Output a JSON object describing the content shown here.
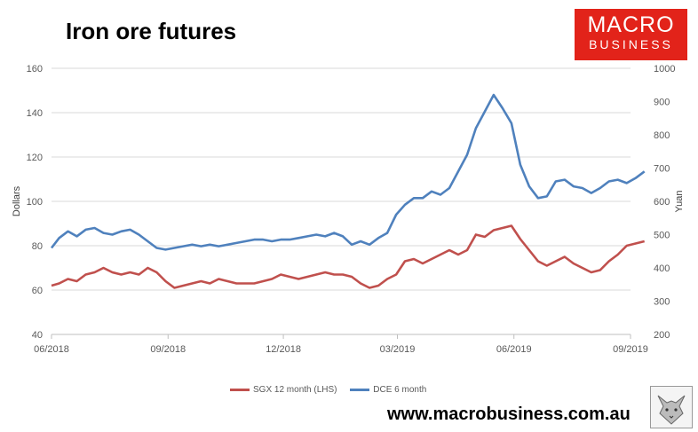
{
  "chart_data": {
    "type": "line",
    "title": "Iron ore futures",
    "ylabel_left": "Dollars",
    "ylabel_right": "Yuan",
    "y_left_lim": [
      40,
      160
    ],
    "y_left_ticks": [
      40,
      60,
      80,
      100,
      120,
      140,
      160
    ],
    "y_right_lim": [
      200,
      1000
    ],
    "y_right_ticks": [
      200,
      300,
      400,
      500,
      600,
      700,
      800,
      900,
      1000
    ],
    "x_lim": [
      "2018-06-01",
      "2019-09-01"
    ],
    "x_ticks": [
      "06/2018",
      "09/2018",
      "12/2018",
      "03/2019",
      "06/2019",
      "09/2019"
    ],
    "grid": true,
    "legend_position": "bottom",
    "series": [
      {
        "name": "SGX 12 month (LHS)",
        "axis": "left",
        "color": "#c0504d",
        "points": [
          [
            "2018-06-01",
            62
          ],
          [
            "2018-06-07",
            63
          ],
          [
            "2018-06-14",
            65
          ],
          [
            "2018-06-21",
            64
          ],
          [
            "2018-06-28",
            67
          ],
          [
            "2018-07-05",
            68
          ],
          [
            "2018-07-12",
            70
          ],
          [
            "2018-07-19",
            68
          ],
          [
            "2018-07-26",
            67
          ],
          [
            "2018-08-02",
            68
          ],
          [
            "2018-08-09",
            67
          ],
          [
            "2018-08-16",
            70
          ],
          [
            "2018-08-23",
            68
          ],
          [
            "2018-08-30",
            64
          ],
          [
            "2018-09-06",
            61
          ],
          [
            "2018-09-13",
            62
          ],
          [
            "2018-09-20",
            63
          ],
          [
            "2018-09-27",
            64
          ],
          [
            "2018-10-04",
            63
          ],
          [
            "2018-10-11",
            65
          ],
          [
            "2018-10-18",
            64
          ],
          [
            "2018-10-25",
            63
          ],
          [
            "2018-11-01",
            63
          ],
          [
            "2018-11-08",
            63
          ],
          [
            "2018-11-15",
            64
          ],
          [
            "2018-11-22",
            65
          ],
          [
            "2018-11-29",
            67
          ],
          [
            "2018-12-06",
            66
          ],
          [
            "2018-12-13",
            65
          ],
          [
            "2018-12-20",
            66
          ],
          [
            "2018-12-27",
            67
          ],
          [
            "2019-01-03",
            68
          ],
          [
            "2019-01-10",
            67
          ],
          [
            "2019-01-17",
            67
          ],
          [
            "2019-01-24",
            66
          ],
          [
            "2019-01-31",
            63
          ],
          [
            "2019-02-07",
            61
          ],
          [
            "2019-02-14",
            62
          ],
          [
            "2019-02-21",
            65
          ],
          [
            "2019-02-28",
            67
          ],
          [
            "2019-03-07",
            73
          ],
          [
            "2019-03-14",
            74
          ],
          [
            "2019-03-21",
            72
          ],
          [
            "2019-03-28",
            74
          ],
          [
            "2019-04-04",
            76
          ],
          [
            "2019-04-11",
            78
          ],
          [
            "2019-04-18",
            76
          ],
          [
            "2019-04-25",
            78
          ],
          [
            "2019-05-02",
            85
          ],
          [
            "2019-05-09",
            84
          ],
          [
            "2019-05-16",
            87
          ],
          [
            "2019-05-23",
            88
          ],
          [
            "2019-05-30",
            89
          ],
          [
            "2019-06-06",
            83
          ],
          [
            "2019-06-13",
            78
          ],
          [
            "2019-06-20",
            73
          ],
          [
            "2019-06-27",
            71
          ],
          [
            "2019-07-04",
            73
          ],
          [
            "2019-07-11",
            75
          ],
          [
            "2019-07-18",
            72
          ],
          [
            "2019-07-25",
            70
          ],
          [
            "2019-08-01",
            68
          ],
          [
            "2019-08-08",
            69
          ],
          [
            "2019-08-15",
            73
          ],
          [
            "2019-08-22",
            76
          ],
          [
            "2019-08-29",
            80
          ],
          [
            "2019-09-05",
            81
          ],
          [
            "2019-09-12",
            82
          ]
        ]
      },
      {
        "name": "DCE 6 month",
        "axis": "right",
        "color": "#4f81bd",
        "points": [
          [
            "2018-06-01",
            460
          ],
          [
            "2018-06-07",
            490
          ],
          [
            "2018-06-14",
            510
          ],
          [
            "2018-06-21",
            495
          ],
          [
            "2018-06-28",
            515
          ],
          [
            "2018-07-05",
            520
          ],
          [
            "2018-07-12",
            505
          ],
          [
            "2018-07-19",
            500
          ],
          [
            "2018-07-26",
            510
          ],
          [
            "2018-08-02",
            515
          ],
          [
            "2018-08-09",
            500
          ],
          [
            "2018-08-16",
            480
          ],
          [
            "2018-08-23",
            460
          ],
          [
            "2018-08-30",
            455
          ],
          [
            "2018-09-06",
            460
          ],
          [
            "2018-09-13",
            465
          ],
          [
            "2018-09-20",
            470
          ],
          [
            "2018-09-27",
            465
          ],
          [
            "2018-10-04",
            470
          ],
          [
            "2018-10-11",
            465
          ],
          [
            "2018-10-18",
            470
          ],
          [
            "2018-10-25",
            475
          ],
          [
            "2018-11-01",
            480
          ],
          [
            "2018-11-08",
            485
          ],
          [
            "2018-11-15",
            485
          ],
          [
            "2018-11-22",
            480
          ],
          [
            "2018-11-29",
            485
          ],
          [
            "2018-12-06",
            485
          ],
          [
            "2018-12-13",
            490
          ],
          [
            "2018-12-20",
            495
          ],
          [
            "2018-12-27",
            500
          ],
          [
            "2019-01-03",
            495
          ],
          [
            "2019-01-10",
            505
          ],
          [
            "2019-01-17",
            495
          ],
          [
            "2019-01-24",
            470
          ],
          [
            "2019-01-31",
            480
          ],
          [
            "2019-02-07",
            470
          ],
          [
            "2019-02-14",
            490
          ],
          [
            "2019-02-21",
            505
          ],
          [
            "2019-02-28",
            560
          ],
          [
            "2019-03-07",
            590
          ],
          [
            "2019-03-14",
            610
          ],
          [
            "2019-03-21",
            610
          ],
          [
            "2019-03-28",
            630
          ],
          [
            "2019-04-04",
            620
          ],
          [
            "2019-04-11",
            640
          ],
          [
            "2019-04-18",
            690
          ],
          [
            "2019-04-25",
            740
          ],
          [
            "2019-05-02",
            820
          ],
          [
            "2019-05-09",
            870
          ],
          [
            "2019-05-16",
            920
          ],
          [
            "2019-05-23",
            880
          ],
          [
            "2019-05-30",
            835
          ],
          [
            "2019-06-06",
            710
          ],
          [
            "2019-06-13",
            645
          ],
          [
            "2019-06-20",
            610
          ],
          [
            "2019-06-27",
            615
          ],
          [
            "2019-07-04",
            660
          ],
          [
            "2019-07-11",
            665
          ],
          [
            "2019-07-18",
            645
          ],
          [
            "2019-07-25",
            640
          ],
          [
            "2019-08-01",
            625
          ],
          [
            "2019-08-08",
            640
          ],
          [
            "2019-08-15",
            660
          ],
          [
            "2019-08-22",
            665
          ],
          [
            "2019-08-29",
            655
          ],
          [
            "2019-09-05",
            670
          ],
          [
            "2019-09-12",
            690
          ]
        ]
      }
    ]
  },
  "logo": {
    "line1": "MACRO",
    "line2": "BUSINESS"
  },
  "footer": {
    "url": "www.macrobusiness.com.au"
  },
  "icons": {
    "mascot": "wolf-icon"
  }
}
